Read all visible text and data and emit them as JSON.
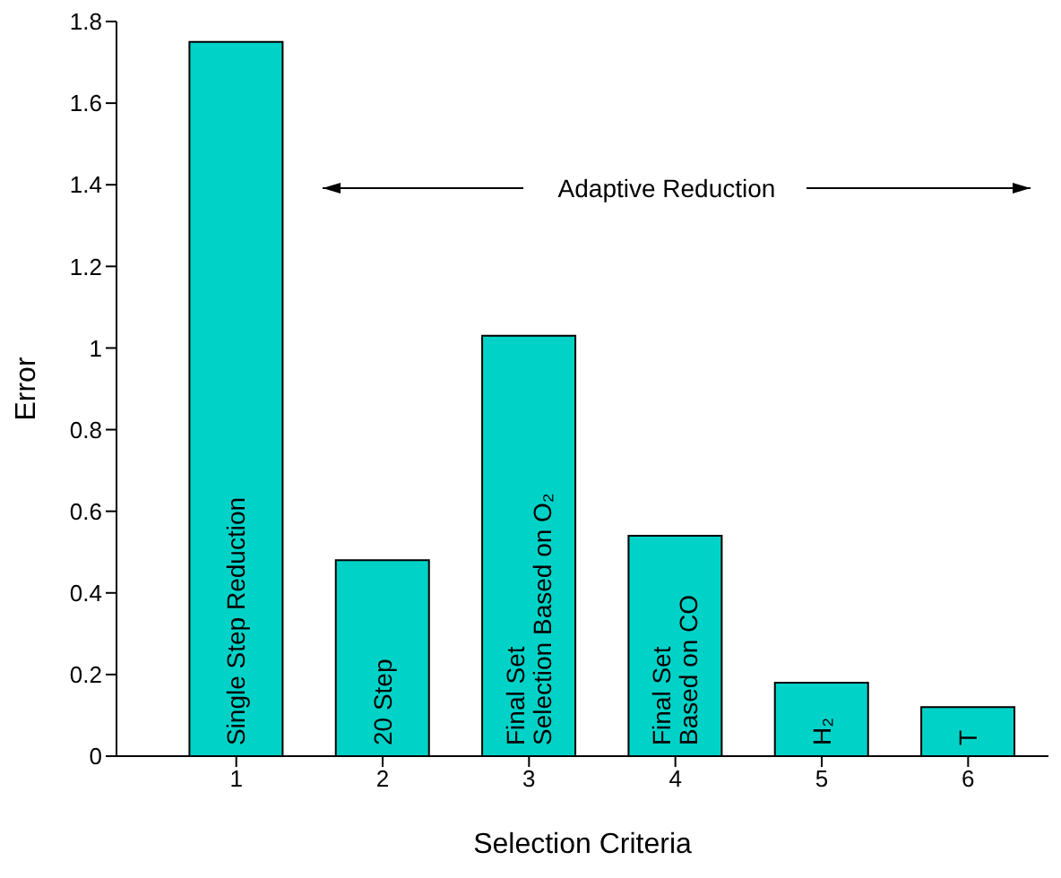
{
  "chart_data": {
    "type": "bar",
    "xlabel": "Selection Criteria",
    "ylabel": "Error",
    "categories": [
      "1",
      "2",
      "3",
      "4",
      "5",
      "6"
    ],
    "values": [
      1.75,
      0.48,
      1.03,
      0.54,
      0.18,
      0.12
    ],
    "color": "#00d2c8",
    "ylim": [
      0,
      1.8
    ],
    "yticks": [
      0,
      0.2,
      0.4,
      0.6,
      0.8,
      1,
      1.2,
      1.4,
      1.6,
      1.8
    ],
    "annotations": [
      "Adaptive Reduction",
      {
        "text": "Single Step Reduction",
        "x": "1",
        "y": 0
      },
      {
        "text": "20 Step",
        "x": "2",
        "y": 0
      },
      {
        "text": "Final Set\nSelection Based on O₂",
        "x": "3",
        "y": 0
      },
      {
        "text": "Final Set\nBased on CO",
        "x": "4",
        "y": 0
      },
      {
        "text": "H₂",
        "x": "5",
        "y": 0
      },
      {
        "text": "T",
        "x": "6",
        "y": 0
      }
    ]
  }
}
